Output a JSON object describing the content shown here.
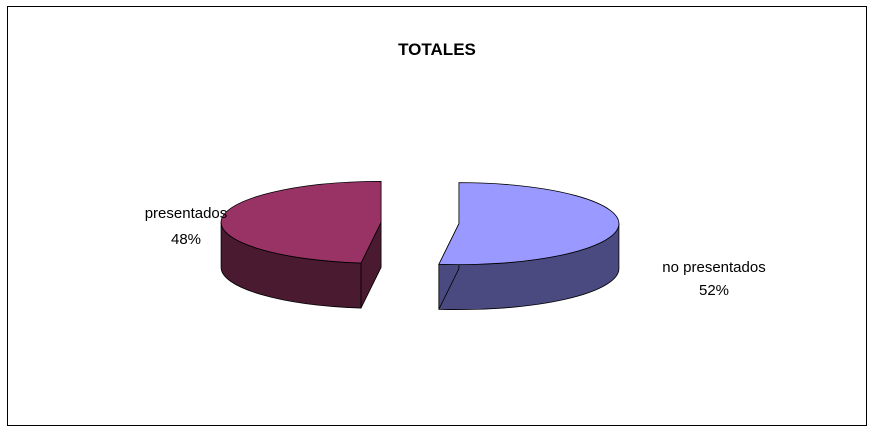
{
  "chart_data": {
    "type": "pie",
    "title": "TOTALES",
    "exploded": true,
    "three_d": true,
    "slices": [
      {
        "label": "presentados",
        "value": 48,
        "value_label": "48%",
        "color": "#993366",
        "side_color": "#4a1a31"
      },
      {
        "label": "no presentados",
        "value": 52,
        "value_label": "52%",
        "color": "#9999ff",
        "side_color": "#4a4a80"
      }
    ]
  }
}
